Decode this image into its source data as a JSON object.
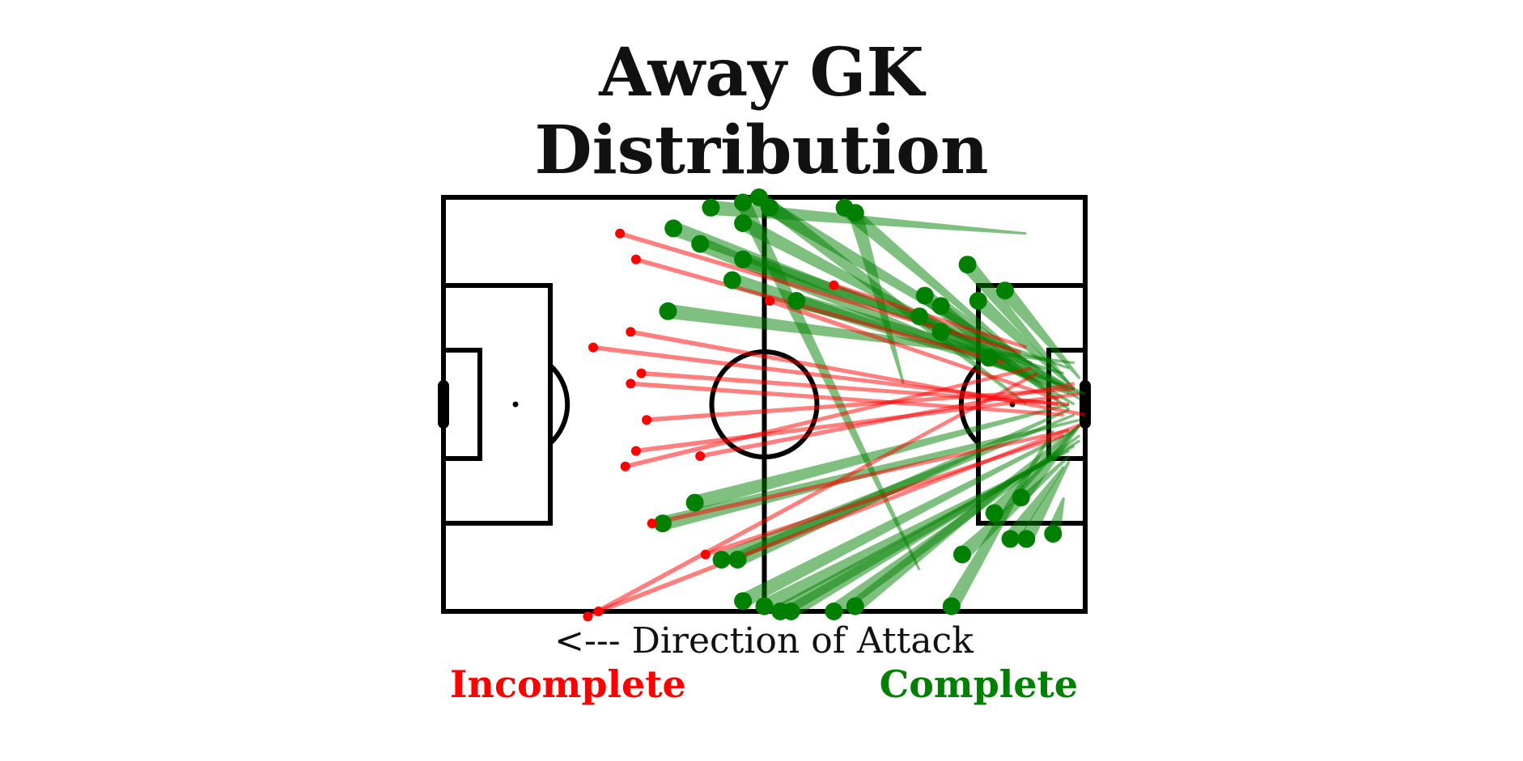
{
  "title_line1": "Away GK",
  "title_line2": "Distribution",
  "direction_label": "<--- Direction of Attack",
  "legend": {
    "incomplete": {
      "label": "Incomplete",
      "color": "#ff0000"
    },
    "complete": {
      "label": "Complete",
      "color": "#008000"
    }
  },
  "chart_data": {
    "type": "scatter",
    "pitch": {
      "x_range": [
        0,
        120
      ],
      "y_range": [
        0,
        80
      ],
      "units": "yards"
    },
    "passes": [
      {
        "outcome": "complete",
        "start": [
          119,
          46
        ],
        "end": [
          73,
          80
        ]
      },
      {
        "outcome": "complete",
        "start": [
          119,
          47
        ],
        "end": [
          65,
          80
        ]
      },
      {
        "outcome": "complete",
        "start": [
          118,
          48
        ],
        "end": [
          63,
          80
        ]
      },
      {
        "outcome": "complete",
        "start": [
          117,
          49
        ],
        "end": [
          60,
          79
        ]
      },
      {
        "outcome": "complete",
        "start": [
          114,
          45
        ],
        "end": [
          95,
          79
        ]
      },
      {
        "outcome": "complete",
        "start": [
          119,
          44
        ],
        "end": [
          77,
          79
        ]
      },
      {
        "outcome": "complete",
        "start": [
          118,
          45
        ],
        "end": [
          56,
          78
        ]
      },
      {
        "outcome": "complete",
        "start": [
          119,
          43
        ],
        "end": [
          41,
          63
        ]
      },
      {
        "outcome": "complete",
        "start": [
          118,
          42
        ],
        "end": [
          52,
          70
        ]
      },
      {
        "outcome": "complete",
        "start": [
          117,
          41
        ],
        "end": [
          55,
          70
        ]
      },
      {
        "outcome": "complete",
        "start": [
          117,
          40
        ],
        "end": [
          47,
          59
        ]
      },
      {
        "outcome": "complete",
        "start": [
          116,
          52
        ],
        "end": [
          106,
          66
        ]
      },
      {
        "outcome": "complete",
        "start": [
          117,
          51
        ],
        "end": [
          109,
          66
        ]
      },
      {
        "outcome": "complete",
        "start": [
          116,
          58
        ],
        "end": [
          114,
          65
        ]
      },
      {
        "outcome": "complete",
        "start": [
          117,
          50
        ],
        "end": [
          97,
          69
        ]
      },
      {
        "outcome": "complete",
        "start": [
          119,
          44
        ],
        "end": [
          108,
          58
        ]
      },
      {
        "outcome": "complete",
        "start": [
          119,
          44
        ],
        "end": [
          103,
          61
        ]
      },
      {
        "outcome": "complete",
        "start": [
          119,
          38
        ],
        "end": [
          102,
          31
        ]
      },
      {
        "outcome": "complete",
        "start": [
          119,
          39
        ],
        "end": [
          93,
          21
        ]
      },
      {
        "outcome": "complete",
        "start": [
          118,
          40
        ],
        "end": [
          89,
          23
        ]
      },
      {
        "outcome": "complete",
        "start": [
          117,
          41
        ],
        "end": [
          90,
          19
        ]
      },
      {
        "outcome": "complete",
        "start": [
          118,
          37
        ],
        "end": [
          100,
          20
        ]
      },
      {
        "outcome": "complete",
        "start": [
          117,
          36
        ],
        "end": [
          98,
          13
        ]
      },
      {
        "outcome": "complete",
        "start": [
          120,
          38
        ],
        "end": [
          93,
          26
        ]
      },
      {
        "outcome": "complete",
        "start": [
          119,
          35
        ],
        "end": [
          105,
          18
        ]
      },
      {
        "outcome": "complete",
        "start": [
          118,
          37
        ],
        "end": [
          54,
          16
        ]
      },
      {
        "outcome": "complete",
        "start": [
          117,
          38
        ],
        "end": [
          48,
          9
        ]
      },
      {
        "outcome": "complete",
        "start": [
          116,
          34
        ],
        "end": [
          66,
          20
        ]
      },
      {
        "outcome": "complete",
        "start": [
          117,
          33
        ],
        "end": [
          56,
          12
        ]
      },
      {
        "outcome": "complete",
        "start": [
          118,
          32
        ],
        "end": [
          42,
          22
        ]
      },
      {
        "outcome": "complete",
        "start": [
          116,
          36
        ],
        "end": [
          61,
          2
        ]
      },
      {
        "outcome": "complete",
        "start": [
          108,
          31
        ],
        "end": [
          75,
          2
        ]
      },
      {
        "outcome": "complete",
        "start": [
          106,
          32
        ],
        "end": [
          56,
          5
        ]
      },
      {
        "outcome": "complete",
        "start": [
          109,
          40
        ],
        "end": [
          59,
          0
        ]
      },
      {
        "outcome": "complete",
        "start": [
          110,
          32
        ],
        "end": [
          43,
          6
        ]
      },
      {
        "outcome": "complete",
        "start": [
          89,
          72
        ],
        "end": [
          56,
          1
        ]
      },
      {
        "outcome": "complete",
        "start": [
          86,
          36
        ],
        "end": [
          77,
          3
        ]
      },
      {
        "outcome": "complete",
        "start": [
          109,
          7
        ],
        "end": [
          50,
          2
        ]
      },
      {
        "outcome": "incomplete",
        "start": [
          115,
          40
        ],
        "end": [
          28,
          29
        ]
      },
      {
        "outcome": "incomplete",
        "start": [
          118,
          37
        ],
        "end": [
          38,
          43
        ]
      },
      {
        "outcome": "incomplete",
        "start": [
          116,
          42
        ],
        "end": [
          35,
          36
        ]
      },
      {
        "outcome": "incomplete",
        "start": [
          119,
          38
        ],
        "end": [
          36,
          49
        ]
      },
      {
        "outcome": "incomplete",
        "start": [
          117,
          40
        ],
        "end": [
          37,
          34
        ]
      },
      {
        "outcome": "incomplete",
        "start": [
          118,
          36
        ],
        "end": [
          48,
          50
        ]
      },
      {
        "outcome": "incomplete",
        "start": [
          120,
          42
        ],
        "end": [
          35,
          26
        ]
      },
      {
        "outcome": "incomplete",
        "start": [
          119,
          44
        ],
        "end": [
          29,
          80
        ]
      },
      {
        "outcome": "incomplete",
        "start": [
          117,
          45
        ],
        "end": [
          39,
          63
        ]
      },
      {
        "outcome": "incomplete",
        "start": [
          116,
          46
        ],
        "end": [
          49,
          69
        ]
      },
      {
        "outcome": "incomplete",
        "start": [
          115,
          39
        ],
        "end": [
          61,
          20
        ]
      },
      {
        "outcome": "incomplete",
        "start": [
          109,
          29
        ],
        "end": [
          73,
          17
        ]
      },
      {
        "outcome": "incomplete",
        "start": [
          108,
          30
        ],
        "end": [
          33,
          7
        ]
      },
      {
        "outcome": "incomplete",
        "start": [
          105,
          32
        ],
        "end": [
          36,
          12
        ]
      },
      {
        "outcome": "incomplete",
        "start": [
          110,
          33
        ],
        "end": [
          34,
          52
        ]
      },
      {
        "outcome": "incomplete",
        "start": [
          111,
          34
        ],
        "end": [
          27,
          81
        ]
      }
    ]
  }
}
